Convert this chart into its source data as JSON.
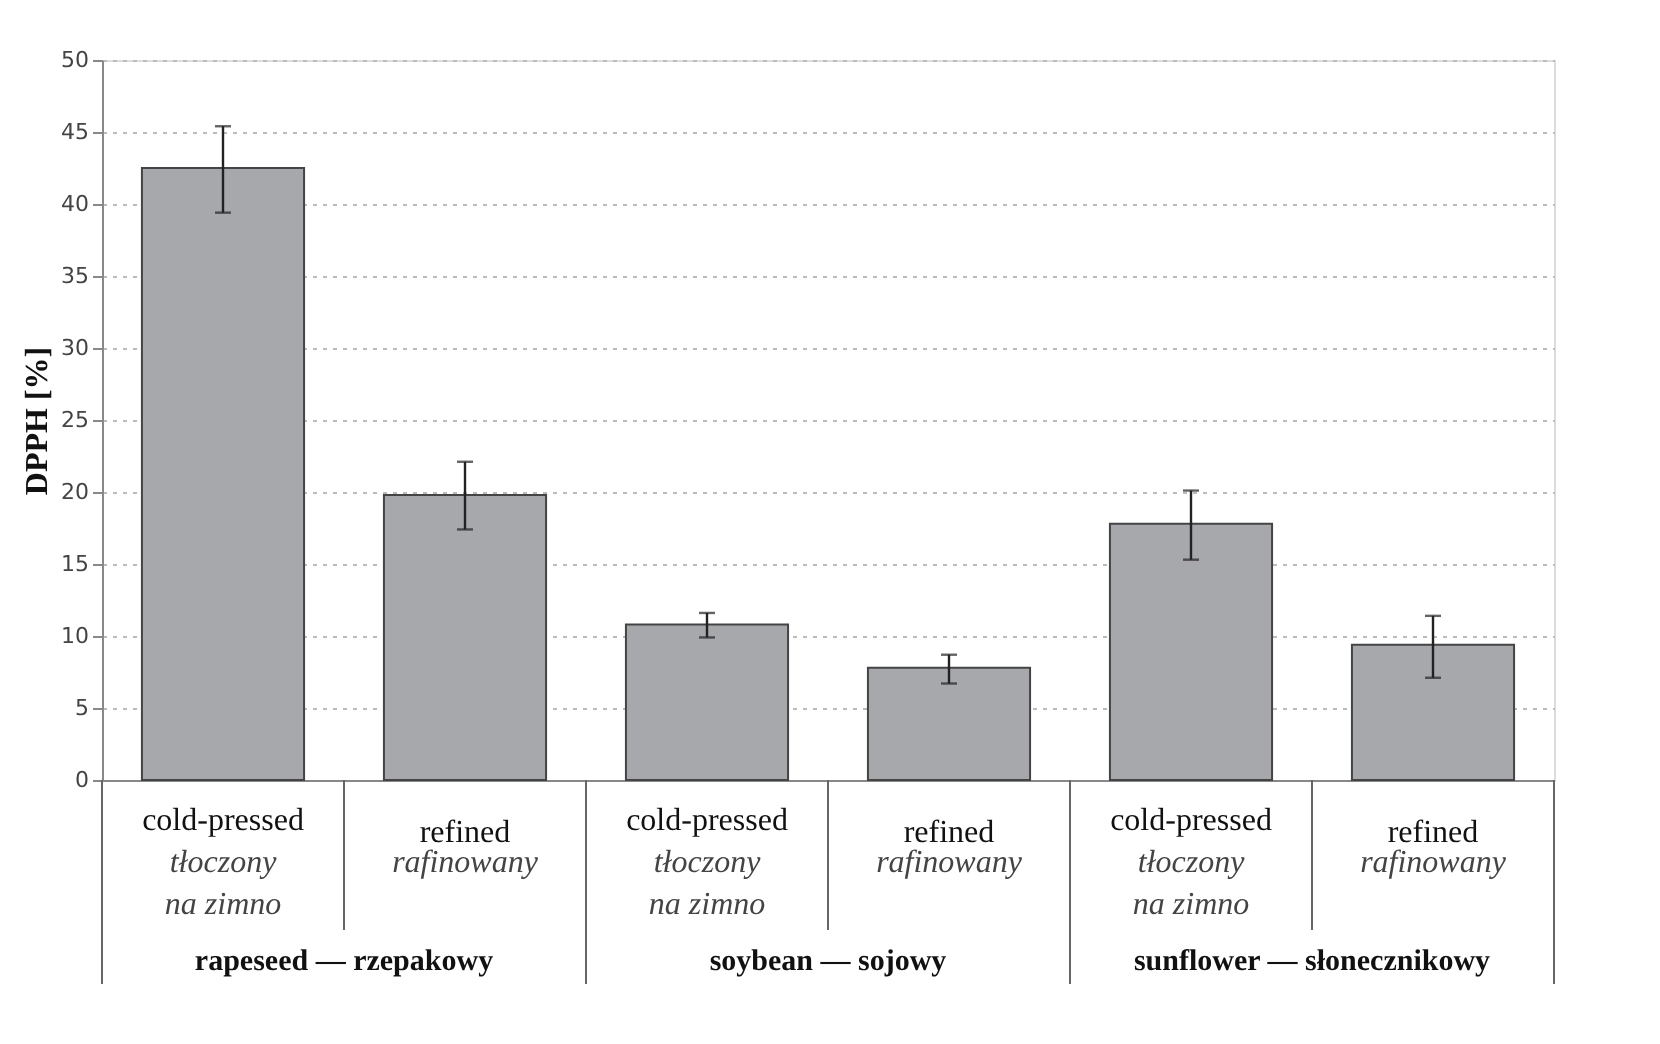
{
  "chart_data": {
    "type": "bar",
    "ylabel": "DPPH [%]",
    "categories": [
      "cold-pressed\ntłoczony\nna zimno",
      "refined\nrafinowany",
      "cold-pressed\ntłoczony\nna zimno",
      "refined\nrafinowany",
      "cold-pressed\ntłoczony\nna zimno",
      "refined\nrafinowany"
    ],
    "values": [
      42.5,
      19.8,
      10.8,
      7.8,
      17.8,
      9.4
    ],
    "errors": [
      [
        39.4,
        45.4
      ],
      [
        17.4,
        22.1
      ],
      [
        9.9,
        11.6
      ],
      [
        6.7,
        8.7
      ],
      [
        15.3,
        20.1
      ],
      [
        7.1,
        11.4
      ]
    ],
    "color": "#a6a8ac",
    "ylim": [
      0,
      50
    ],
    "yticks": [
      0,
      5,
      10,
      15,
      20,
      25,
      30,
      35,
      40,
      45,
      50
    ],
    "grid": "y",
    "annotations": [
      "rapeseed — rzepakowy",
      "soybean — sojowy",
      "sunflower — słonecznikowy"
    ]
  }
}
